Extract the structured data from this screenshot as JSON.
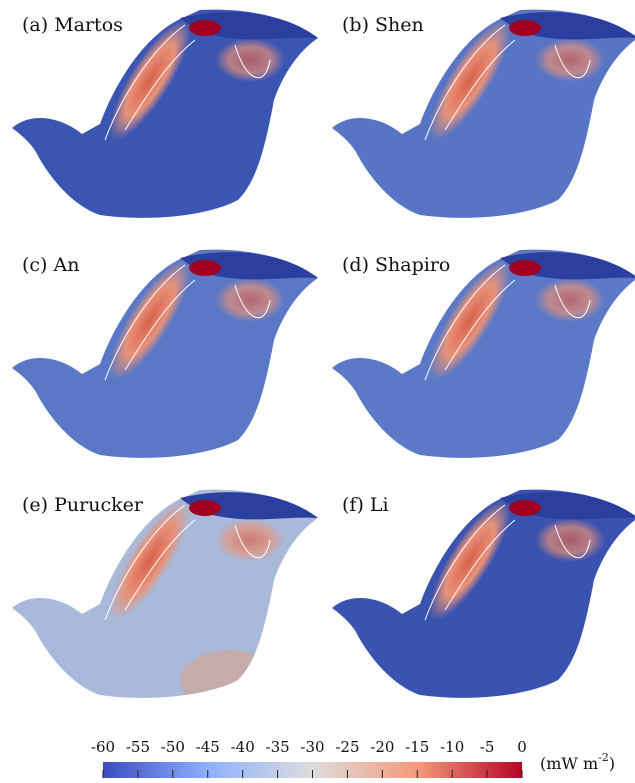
{
  "panels": [
    {
      "label": "(a) Martos"
    },
    {
      "label": "(b) Shen"
    },
    {
      "label": "(c) An"
    },
    {
      "label": "(d) Shapiro"
    },
    {
      "label": "(e) Purucker"
    },
    {
      "label": "(f) Li"
    }
  ],
  "colorbar": {
    "lim": [
      -60,
      0
    ],
    "ticks": [
      -60,
      -55,
      -50,
      -45,
      -40,
      -35,
      -30,
      -25,
      -20,
      -15,
      -10,
      -5,
      0
    ],
    "unit": [
      "(mW m",
      "-2",
      ")"
    ]
  }
}
